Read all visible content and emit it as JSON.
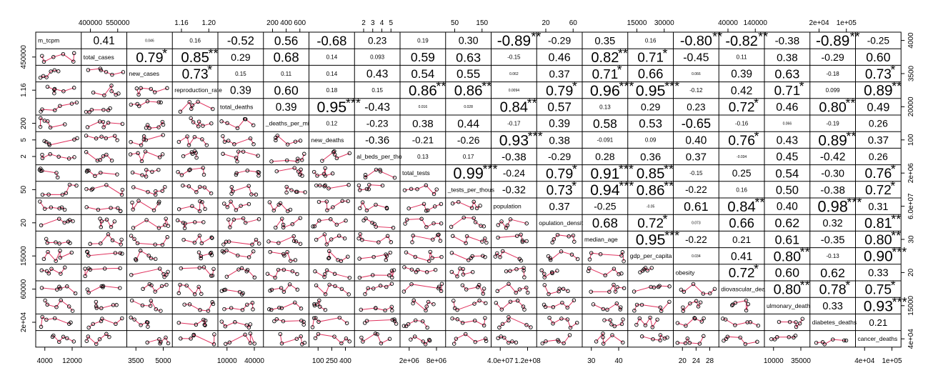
{
  "chart_data": {
    "type": "scatter",
    "title": "",
    "variables": [
      "m_tcpm",
      "total_cases",
      "new_cases",
      "reproduction_rate",
      "total_deaths",
      "_deaths_per_mi",
      "new_deaths",
      "al_beds_per_tho",
      "total_tests",
      "_tests_per_thous",
      "population",
      "opulation_densit",
      "median_age",
      "gdp_per_capita",
      "obesity",
      "diovascular_dea",
      "ulmonary_death",
      "diabetes_deaths",
      "cancer_deaths"
    ],
    "correlations": [
      [
        "0.41",
        "0.046",
        "0.16",
        "-0.52",
        "0.56",
        "-0.68",
        "0.23",
        "0.19",
        "0.30",
        "-0.89",
        "-0.29",
        "0.35",
        "0.16",
        "-0.80",
        "-0.82",
        "-0.38",
        "-0.89",
        "-0.25"
      ],
      [
        "0.79",
        "0.85",
        "0.29",
        "0.68",
        "0.14",
        "0.093",
        "0.59",
        "0.63",
        "-0.15",
        "0.46",
        "0.82",
        "0.71",
        "-0.45",
        "0.11",
        "0.38",
        "-0.29",
        "0.60"
      ],
      [
        "0.73",
        "0.15",
        "0.11",
        "0.14",
        "0.43",
        "0.54",
        "0.55",
        "0.062",
        "0.37",
        "0.71",
        "0.66",
        "0.066",
        "0.39",
        "0.63",
        "-0.18",
        "0.73"
      ],
      [
        "0.39",
        "0.60",
        "0.18",
        "0.15",
        "0.86",
        "0.86",
        "0.0094",
        "0.79",
        "0.96",
        "0.95",
        "-0.12",
        "0.42",
        "0.71",
        "0.099",
        "0.89"
      ],
      [
        "0.39",
        "0.95",
        "-0.43",
        "0.016",
        "0.028",
        "0.84",
        "0.57",
        "0.13",
        "0.29",
        "0.23",
        "0.72",
        "0.46",
        "0.80",
        "0.49"
      ],
      [
        "0.12",
        "-0.23",
        "0.38",
        "0.44",
        "-0.17",
        "0.39",
        "0.58",
        "0.53",
        "-0.65",
        "-0.16",
        "0.066",
        "-0.19",
        "0.26"
      ],
      [
        "-0.36",
        "-0.21",
        "-0.26",
        "0.93",
        "0.38",
        "-0.091",
        "0.09",
        "0.40",
        "0.76",
        "0.43",
        "0.89",
        "0.37"
      ],
      [
        "0.13",
        "0.17",
        "-0.38",
        "-0.29",
        "0.28",
        "0.36",
        "0.37",
        "-0.034",
        "0.45",
        "-0.42",
        "0.26"
      ],
      [
        "0.99",
        "-0.24",
        "0.79",
        "0.91",
        "0.85",
        "-0.15",
        "0.25",
        "0.54",
        "-0.30",
        "0.76"
      ],
      [
        "-0.32",
        "0.73",
        "0.94",
        "0.86",
        "-0.22",
        "0.16",
        "0.50",
        "-0.38",
        "0.72"
      ],
      [
        "0.37",
        "-0.25",
        "-0.05",
        "0.61",
        "0.84",
        "0.40",
        "0.98",
        "0.31"
      ],
      [
        "0.68",
        "0.72",
        "0.073",
        "0.66",
        "0.62",
        "0.32",
        "0.81"
      ],
      [
        "0.95",
        "-0.22",
        "0.21",
        "0.61",
        "-0.35",
        "0.80"
      ],
      [
        "0.034",
        "0.41",
        "0.80",
        "-0.13",
        "0.90"
      ],
      [
        "0.72",
        "0.60",
        "0.62",
        "0.33"
      ],
      [
        "0.80",
        "0.78",
        "0.75"
      ],
      [
        "0.33",
        "0.93"
      ],
      [
        "0.21"
      ]
    ],
    "top_axis_ticks": [
      {
        "col": 1,
        "labels": [
          "400000",
          "550000"
        ]
      },
      {
        "col": 3,
        "labels": [
          "1.16",
          "1.20"
        ]
      },
      {
        "col": 5,
        "labels": [
          "200",
          "400",
          "600"
        ]
      },
      {
        "col": 7,
        "labels": [
          "2",
          "3",
          "4",
          "5"
        ]
      },
      {
        "col": 9,
        "labels": [
          "50",
          "150"
        ]
      },
      {
        "col": 11,
        "labels": [
          "20",
          "60"
        ]
      },
      {
        "col": 13,
        "labels": [
          "15000",
          "30000"
        ]
      },
      {
        "col": 15,
        "labels": [
          "40000",
          "140000"
        ]
      },
      {
        "col": 17,
        "labels": [
          "2e+04",
          "1e+05"
        ]
      }
    ],
    "bottom_axis_ticks": [
      {
        "col": 0,
        "labels": [
          "4000",
          "12000"
        ]
      },
      {
        "col": 2,
        "labels": [
          "3500",
          "5000"
        ]
      },
      {
        "col": 4,
        "labels": [
          "10000",
          "40000"
        ]
      },
      {
        "col": 6,
        "labels": [
          "100",
          "250",
          "400"
        ]
      },
      {
        "col": 8,
        "labels": [
          "2e+06",
          "8e+06"
        ]
      },
      {
        "col": 10,
        "labels": [
          "4.0e+07",
          "1.2e+08"
        ]
      },
      {
        "col": 12,
        "labels": [
          "30",
          "40"
        ]
      },
      {
        "col": 14,
        "labels": [
          "20",
          "24",
          "28"
        ]
      },
      {
        "col": 16,
        "labels": [
          "10000",
          "35000"
        ]
      },
      {
        "col": 18,
        "labels": [
          "4e+04",
          "1e+05"
        ]
      }
    ],
    "left_axis_ticks": [
      {
        "row": 1,
        "labels": [
          "450000"
        ]
      },
      {
        "row": 3,
        "labels": [
          "1.16"
        ]
      },
      {
        "row": 5,
        "labels": [
          "200"
        ]
      },
      {
        "row": 6,
        "labels": [
          "5"
        ]
      },
      {
        "row": 7,
        "labels": [
          "2"
        ]
      },
      {
        "row": 9,
        "labels": [
          "50"
        ]
      },
      {
        "row": 11,
        "labels": [
          "20"
        ]
      },
      {
        "row": 13,
        "labels": [
          "15000"
        ]
      },
      {
        "row": 15,
        "labels": [
          "60000"
        ]
      },
      {
        "row": 17,
        "labels": [
          "2e+04"
        ]
      }
    ],
    "right_axis_ticks": [
      {
        "row": 0,
        "labels": [
          "4000"
        ]
      },
      {
        "row": 2,
        "labels": [
          "3500"
        ]
      },
      {
        "row": 4,
        "labels": [
          "20000"
        ]
      },
      {
        "row": 6,
        "labels": [
          "100"
        ]
      },
      {
        "row": 8,
        "labels": [
          "2e+06"
        ]
      },
      {
        "row": 10,
        "labels": [
          "6.0e+07"
        ]
      },
      {
        "row": 12,
        "labels": [
          "30"
        ]
      },
      {
        "row": 14,
        "labels": [
          "20"
        ]
      },
      {
        "row": 16,
        "labels": [
          "15000"
        ]
      },
      {
        "row": 18,
        "labels": [
          "4e+04"
        ]
      }
    ],
    "significance_mark": "*",
    "colors": {
      "smooth_line": "#e0325e",
      "star": "#e0325e",
      "points": "#000000",
      "frame": "#000000"
    }
  }
}
